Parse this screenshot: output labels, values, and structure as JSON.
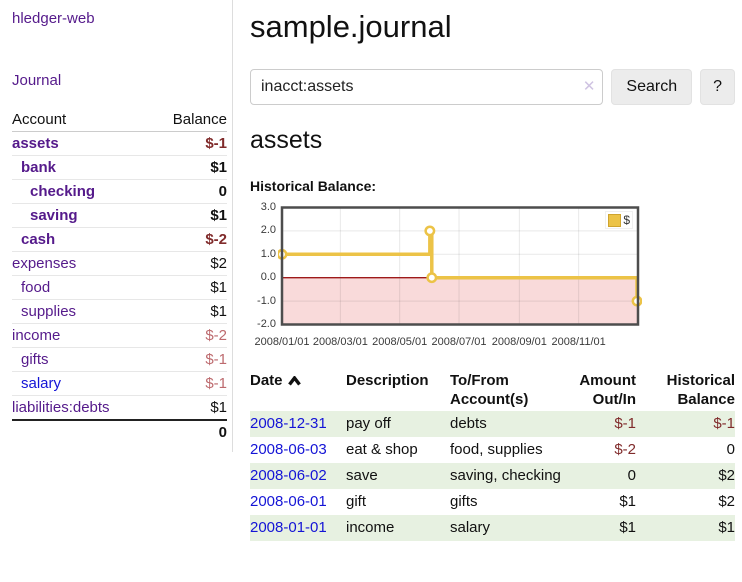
{
  "app": {
    "title": "hledger-web"
  },
  "colors": {
    "link_purple": "#551a8b",
    "link_blue": "#1414d6",
    "negative_strong": "#802b2b",
    "negative_soft": "#bd6a6e",
    "row_stripe_green": "#e7f1e1",
    "chart_gold": "#ecc347",
    "chart_negative_fill": "#f9dada",
    "chart_zero_line": "#9e1a1a",
    "chart_border": "#4d4d4d"
  },
  "sidebar": {
    "journal_link": "Journal",
    "accounts": {
      "col_account": "Account",
      "col_balance": "Balance",
      "rows": [
        {
          "name": "assets",
          "balance": "$-1",
          "depth": 0,
          "in_focus": true,
          "link_color": "purple"
        },
        {
          "name": "bank",
          "balance": "$1",
          "depth": 1,
          "in_focus": true,
          "link_color": "purple"
        },
        {
          "name": "checking",
          "balance": "0",
          "depth": 2,
          "in_focus": true,
          "link_color": "purple"
        },
        {
          "name": "saving",
          "balance": "$1",
          "depth": 2,
          "in_focus": true,
          "link_color": "purple"
        },
        {
          "name": "cash",
          "balance": "$-2",
          "depth": 1,
          "in_focus": true,
          "link_color": "purple"
        },
        {
          "name": "expenses",
          "balance": "$2",
          "depth": 0,
          "in_focus": false,
          "link_color": "purple"
        },
        {
          "name": "food",
          "balance": "$1",
          "depth": 1,
          "in_focus": false,
          "link_color": "purple"
        },
        {
          "name": "supplies",
          "balance": "$1",
          "depth": 1,
          "in_focus": false,
          "link_color": "purple"
        },
        {
          "name": "income",
          "balance": "$-2",
          "depth": 0,
          "in_focus": false,
          "link_color": "purple"
        },
        {
          "name": "gifts",
          "balance": "$-1",
          "depth": 1,
          "in_focus": false,
          "link_color": "purple"
        },
        {
          "name": "salary",
          "balance": "$-1",
          "depth": 1,
          "in_focus": false,
          "link_color": "blue"
        },
        {
          "name": "liabilities:debts",
          "balance": "$1",
          "depth": 0,
          "in_focus": false,
          "link_color": "purple"
        }
      ],
      "total": "0"
    }
  },
  "header": {
    "title": "sample.journal"
  },
  "search": {
    "value": "inacct:assets",
    "clear_icon": "✕",
    "search_button": "Search",
    "help_button": "?"
  },
  "account_page": {
    "title": "assets",
    "chart_label": "Historical Balance:"
  },
  "chart_data": {
    "type": "line",
    "title": "Historical Balance:",
    "step": true,
    "series": [
      {
        "name": "$",
        "color": "#ecc347",
        "points": [
          {
            "date": "2008-01-01",
            "x_days": 0,
            "y": 1
          },
          {
            "date": "2008-06-01",
            "x_days": 152,
            "y": 2
          },
          {
            "date": "2008-06-03",
            "x_days": 154,
            "y": 0
          },
          {
            "date": "2008-12-31",
            "x_days": 365,
            "y": -1
          }
        ]
      }
    ],
    "x_ticks": [
      "2008/01/01",
      "2008/03/01",
      "2008/05/01",
      "2008/07/01",
      "2008/09/01",
      "2008/11/01"
    ],
    "x_tick_days": [
      0,
      60,
      121,
      182,
      244,
      305
    ],
    "x_range_days": [
      0,
      366
    ],
    "y_ticks": [
      "3.0",
      "2.0",
      "1.0",
      "0.0",
      "-1.0",
      "-2.0"
    ],
    "ylim": [
      -2,
      3
    ],
    "grid": true,
    "negative_region_shaded": true,
    "legend": {
      "label": "$",
      "position": "top-right"
    }
  },
  "register": {
    "headers": {
      "date": "Date",
      "description": "Description",
      "accounts": "To/From Account(s)",
      "amount": "Amount Out/In",
      "balance": "Historical Balance"
    },
    "sort": {
      "column": "date",
      "direction": "ascending"
    },
    "rows": [
      {
        "date": "2008-12-31",
        "description": "pay off",
        "accounts": "debts",
        "amount": "$-1",
        "balance": "$-1"
      },
      {
        "date": "2008-06-03",
        "description": "eat & shop",
        "accounts": "food, supplies",
        "amount": "$-2",
        "balance": "0"
      },
      {
        "date": "2008-06-02",
        "description": "save",
        "accounts": "saving, checking",
        "amount": "0",
        "balance": "$2"
      },
      {
        "date": "2008-06-01",
        "description": "gift",
        "accounts": "gifts",
        "amount": "$1",
        "balance": "$2"
      },
      {
        "date": "2008-01-01",
        "description": "income",
        "accounts": "salary",
        "amount": "$1",
        "balance": "$1"
      }
    ]
  }
}
